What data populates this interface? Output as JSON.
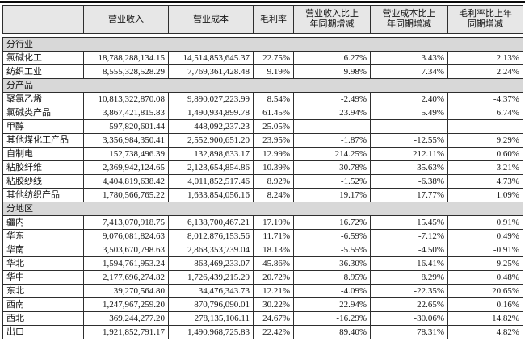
{
  "document": {
    "type": "financial-segment-table",
    "colors": {
      "section_row_bg": "#d8d8d8",
      "header_bg": "#e7e7e7",
      "border": "#2e2e2e",
      "top_rule": "#0a0a0a"
    }
  },
  "table": {
    "columns": [
      "",
      "营业收入",
      "营业成本",
      "毛利率",
      "营业收入比上\n年同期增减",
      "营业成本比上\n年同期增减",
      "毛利率比上年\n同期增减"
    ],
    "sections": [
      {
        "title": "分行业",
        "rows": [
          {
            "label": "氯碱化工",
            "values": [
              "18,788,288,134.15",
              "14,514,853,645.37",
              "22.75%",
              "6.27%",
              "3.43%",
              "2.13%"
            ]
          },
          {
            "label": "纺织工业",
            "values": [
              "8,555,328,528.29",
              "7,769,361,428.48",
              "9.19%",
              "9.98%",
              "7.34%",
              "2.24%"
            ]
          }
        ]
      },
      {
        "title": "分产品",
        "rows": [
          {
            "label": "聚氯乙烯",
            "values": [
              "10,813,322,870.08",
              "9,890,027,223.99",
              "8.54%",
              "-2.49%",
              "2.40%",
              "-4.37%"
            ]
          },
          {
            "label": "氯碱类产品",
            "values": [
              "3,867,421,815.83",
              "1,490,934,899.78",
              "61.45%",
              "23.94%",
              "5.49%",
              "6.74%"
            ]
          },
          {
            "label": "甲醇",
            "values": [
              "597,820,601.44",
              "448,092,237.23",
              "25.05%",
              "-",
              "-",
              "-"
            ]
          },
          {
            "label": "其他煤化工产品",
            "values": [
              "3,356,984,350.41",
              "2,552,900,651.20",
              "23.95%",
              "-1.87%",
              "-12.55%",
              "9.29%"
            ]
          },
          {
            "label": "自制电",
            "values": [
              "152,738,496.39",
              "132,898,633.17",
              "12.99%",
              "214.25%",
              "212.11%",
              "0.60%"
            ]
          },
          {
            "label": "粘胶纤维",
            "values": [
              "2,369,942,124.65",
              "2,123,654,854.86",
              "10.39%",
              "30.78%",
              "35.63%",
              "-3.21%"
            ]
          },
          {
            "label": "粘胶纱线",
            "values": [
              "4,404,819,638.42",
              "4,011,852,517.46",
              "8.92%",
              "-1.52%",
              "-6.38%",
              "4.73%"
            ]
          },
          {
            "label": "其他纺织产品",
            "values": [
              "1,780,566,765.22",
              "1,633,854,056.16",
              "8.24%",
              "19.17%",
              "17.77%",
              "1.09%"
            ]
          }
        ]
      },
      {
        "title": "分地区",
        "rows": [
          {
            "label": "疆内",
            "values": [
              "7,413,070,918.75",
              "6,138,700,467.21",
              "17.19%",
              "16.72%",
              "15.45%",
              "0.91%"
            ]
          },
          {
            "label": "华东",
            "values": [
              "9,076,081,824.63",
              "8,012,876,153.56",
              "11.71%",
              "-6.59%",
              "-7.12%",
              "0.49%"
            ]
          },
          {
            "label": "华南",
            "values": [
              "3,503,670,798.63",
              "2,868,353,739.04",
              "18.13%",
              "-5.55%",
              "-4.50%",
              "-0.91%"
            ]
          },
          {
            "label": "华北",
            "values": [
              "1,594,761,953.24",
              "863,469,233.07",
              "45.86%",
              "36.30%",
              "16.41%",
              "9.25%"
            ]
          },
          {
            "label": "华中",
            "values": [
              "2,177,696,274.82",
              "1,726,439,215.29",
              "20.72%",
              "8.95%",
              "8.29%",
              "0.48%"
            ]
          },
          {
            "label": "东北",
            "values": [
              "39,270,564.80",
              "34,476,343.73",
              "12.21%",
              "-4.09%",
              "-22.35%",
              "20.65%"
            ]
          },
          {
            "label": "西南",
            "values": [
              "1,247,967,259.20",
              "870,796,090.01",
              "30.22%",
              "22.94%",
              "22.65%",
              "0.16%"
            ]
          },
          {
            "label": "西北",
            "values": [
              "369,244,277.20",
              "278,135,106.11",
              "24.67%",
              "-16.29%",
              "-30.06%",
              "14.82%"
            ]
          },
          {
            "label": "出口",
            "values": [
              "1,921,852,791.17",
              "1,490,968,725.83",
              "22.42%",
              "89.40%",
              "78.31%",
              "4.82%"
            ]
          }
        ]
      }
    ]
  }
}
